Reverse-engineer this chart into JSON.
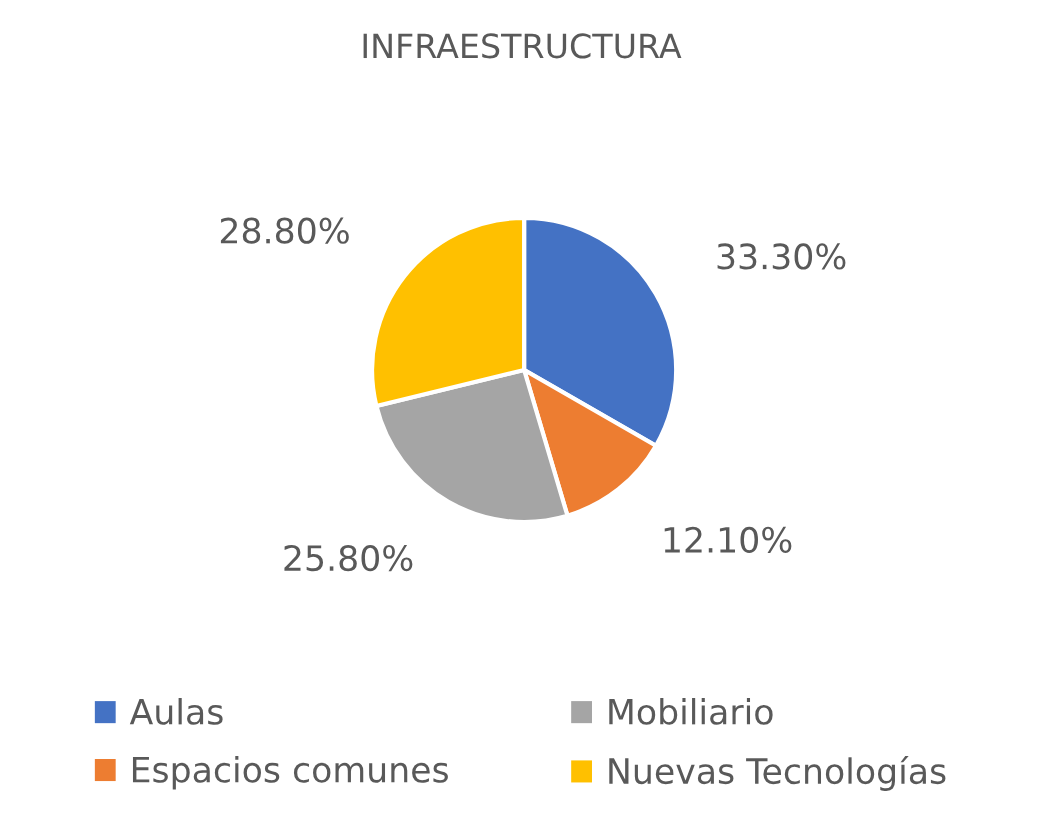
{
  "chart_data": {
    "type": "pie",
    "title": "INFRAESTRUCTURA",
    "categories": [
      "Aulas",
      "Espacios comunes",
      "Mobiliario",
      "Nuevas Tecnologías"
    ],
    "values": [
      33.3,
      12.1,
      25.8,
      28.8
    ],
    "value_labels": [
      "33.30%",
      "12.10%",
      "25.80%",
      "28.80%"
    ],
    "colors": [
      "#4472c4",
      "#ed7d31",
      "#a5a5a5",
      "#ffc000"
    ],
    "legend": "bottom"
  }
}
